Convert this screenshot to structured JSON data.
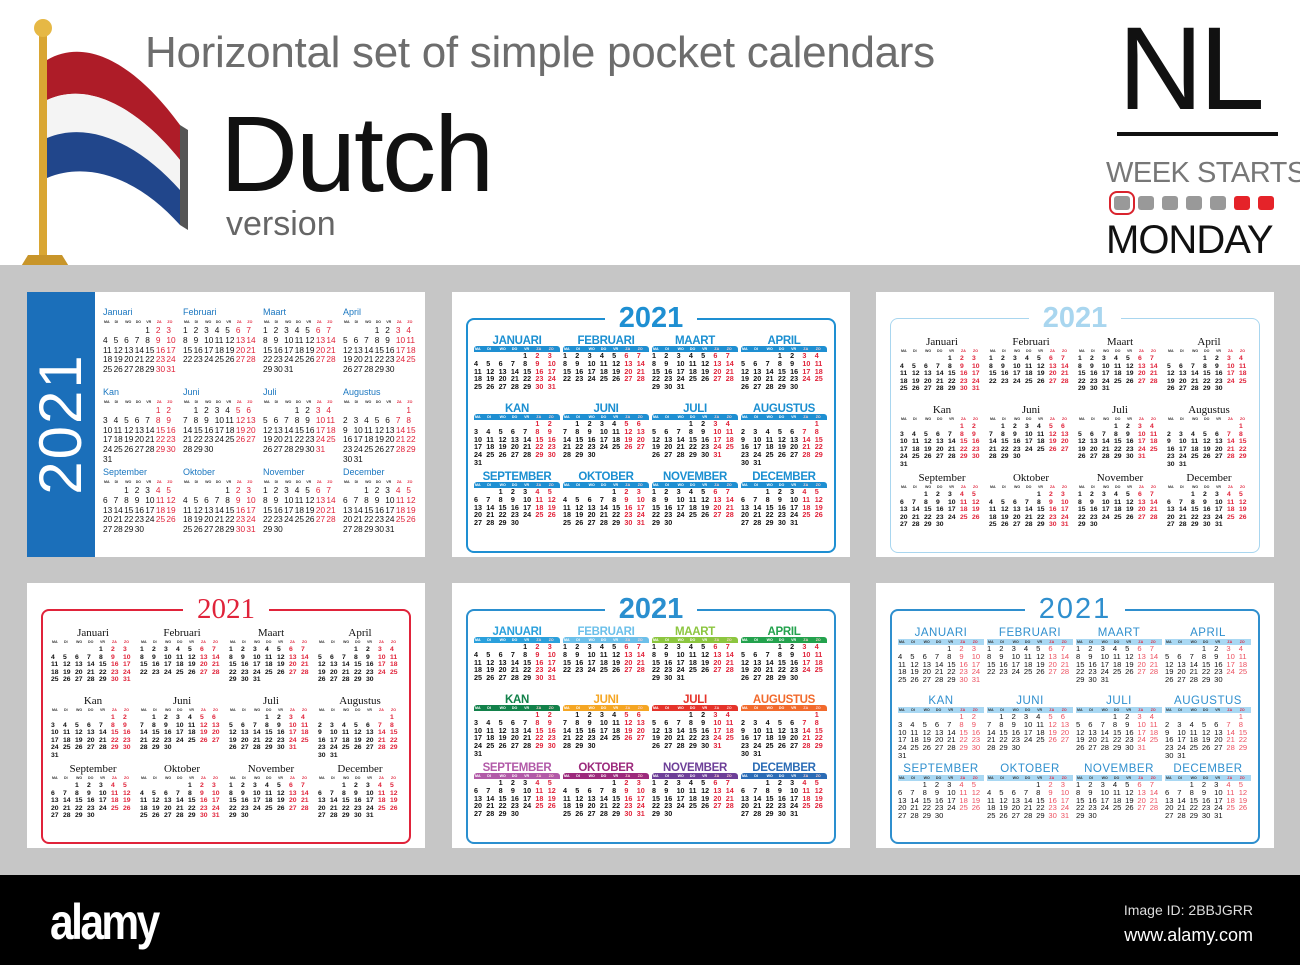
{
  "header": {
    "title": "Horizontal set of simple pocket calendars",
    "language": "Dutch",
    "version": "version",
    "code": "NL",
    "week_starts": "WEEK STARTS",
    "start_day": "MONDAY",
    "week_dots": [
      "workday",
      "workday",
      "workday",
      "workday",
      "workday",
      "weekend",
      "weekend"
    ],
    "flag_colors": {
      "red": "#ae1c28",
      "white": "#ffffff",
      "blue": "#21468b",
      "pole": "#d9a633"
    }
  },
  "weekdays": [
    "MA",
    "DI",
    "WO",
    "DO",
    "VR",
    "ZA",
    "ZO"
  ],
  "year": "2021",
  "months": [
    {
      "first_weekday": 5,
      "days": 31
    },
    {
      "first_weekday": 1,
      "days": 28
    },
    {
      "first_weekday": 1,
      "days": 31
    },
    {
      "first_weekday": 4,
      "days": 30
    },
    {
      "first_weekday": 6,
      "days": 31
    },
    {
      "first_weekday": 2,
      "days": 30
    },
    {
      "first_weekday": 4,
      "days": 31
    },
    {
      "first_weekday": 7,
      "days": 31
    },
    {
      "first_weekday": 3,
      "days": 30
    },
    {
      "first_weekday": 5,
      "days": 31
    },
    {
      "first_weekday": 1,
      "days": 30
    },
    {
      "first_weekday": 3,
      "days": 31
    }
  ],
  "month_names": [
    "Januari",
    "Februari",
    "Maart",
    "April",
    "Kan",
    "Juni",
    "Juli",
    "Augustus",
    "September",
    "Oktober",
    "November",
    "December"
  ],
  "month_names_upper": [
    "JANUARI",
    "FEBRUARI",
    "MAART",
    "APRIL",
    "KAN",
    "JUNI",
    "JULI",
    "AUGUSTUS",
    "SEPTEMBER",
    "OKTOBER",
    "NOVEMBER",
    "DECEMBER"
  ],
  "cards": [
    {
      "style": "strip",
      "case": "normal",
      "accent": "#1b6fba"
    },
    {
      "style": "banner",
      "case": "upper",
      "accent": "#1e8fd2"
    },
    {
      "style": "serif",
      "case": "normal",
      "accent": "#a9d6ef"
    },
    {
      "style": "serif",
      "case": "normal",
      "accent": "#e0233a"
    },
    {
      "style": "color",
      "case": "upper",
      "accent": "#2a8fcf",
      "month_colors": [
        "#2aa0dc",
        "#6cc0ea",
        "#8cc63f",
        "#23a24d",
        "#12814a",
        "#f5a623",
        "#e5332a",
        "#f26a2c",
        "#b25aa8",
        "#9c2a7c",
        "#6d3f98",
        "#2b6cb6"
      ]
    },
    {
      "style": "light",
      "case": "upper",
      "accent": "#2f8fce"
    }
  ],
  "footer": {
    "logo": "alamy",
    "image_id": "Image ID: 2BBJGRR",
    "url": "www.alamy.com"
  }
}
